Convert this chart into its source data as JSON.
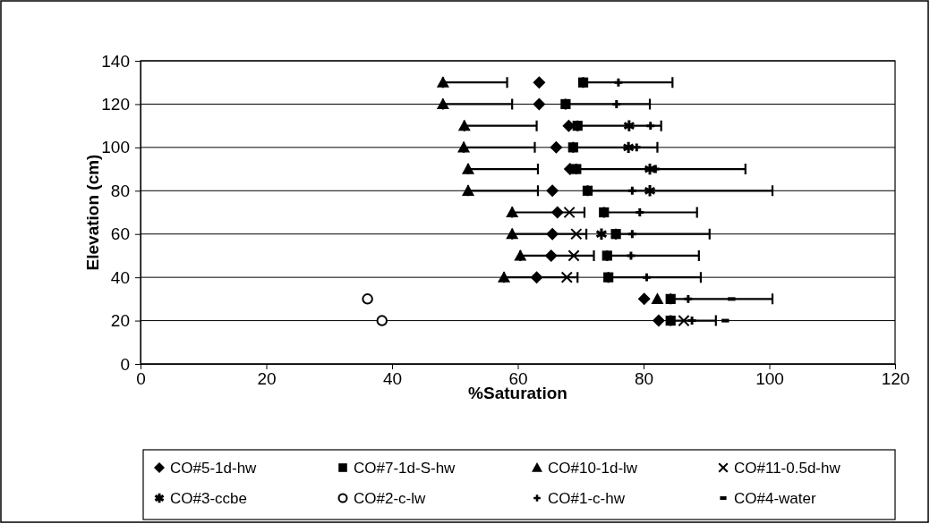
{
  "chart_data": {
    "type": "scatter",
    "xlabel": "%Saturation",
    "ylabel": "Elevation (cm)",
    "xlim": [
      0,
      120
    ],
    "xticks": [
      0,
      20,
      40,
      60,
      80,
      100,
      120
    ],
    "ylim": [
      0,
      140
    ],
    "yticks": [
      0,
      20,
      40,
      60,
      80,
      100,
      120,
      140
    ],
    "grid": "y",
    "legend": "bottom",
    "series": [
      {
        "name": "CO#5-1d-hw",
        "color": "#000000",
        "marker": "diamond",
        "x": [
          63.4,
          63.4,
          68.1,
          66.1,
          68.3,
          65.5,
          66.3,
          65.5,
          65.3,
          63.0,
          80.1,
          82.4
        ],
        "values": [
          130,
          120,
          110,
          100,
          90,
          80,
          70,
          60,
          50,
          40,
          30,
          20
        ]
      },
      {
        "name": "CO#7-1d-S-hw",
        "color": "#000000",
        "marker": "square",
        "x": [
          70.4,
          67.6,
          69.5,
          68.8,
          69.3,
          71.1,
          73.7,
          75.6,
          74.2,
          74.4,
          84.3,
          84.3
        ],
        "values": [
          130,
          120,
          110,
          100,
          90,
          80,
          70,
          60,
          50,
          40,
          30,
          20
        ],
        "xerrors": [
          [
            70.4,
            84.6
          ],
          [
            67.6,
            81.0
          ],
          [
            69.5,
            82.8
          ],
          [
            68.8,
            82.2
          ],
          [
            69.3,
            96.2
          ],
          [
            71.1,
            100.5
          ],
          [
            73.7,
            88.5
          ],
          [
            75.6,
            90.5
          ],
          [
            74.2,
            88.8
          ],
          [
            74.4,
            89.1
          ],
          [
            84.3,
            100.5
          ],
          [
            84.3,
            91.5
          ]
        ]
      },
      {
        "name": "CO#10-1d-lw",
        "color": "#000000",
        "marker": "triangle",
        "x": [
          48.1,
          48.1,
          51.5,
          51.4,
          52.1,
          52.1,
          59.1,
          59.1,
          60.4,
          57.8,
          82.2
        ],
        "values": [
          130,
          120,
          110,
          100,
          90,
          80,
          70,
          60,
          50,
          40,
          30
        ],
        "xerrors": [
          [
            48.1,
            58.3
          ],
          [
            48.1,
            59.1
          ],
          [
            51.5,
            63.0
          ],
          [
            51.4,
            62.7
          ],
          [
            52.1,
            63.2
          ],
          [
            52.1,
            63.2
          ],
          [
            59.1,
            70.6
          ],
          [
            59.1,
            70.9
          ],
          [
            60.4,
            72.1
          ],
          [
            57.8,
            69.5
          ],
          null
        ]
      },
      {
        "name": "CO#11-0.5d-hw",
        "color": "#000000",
        "marker": "cross",
        "x": [
          68.2,
          69.3,
          68.9,
          67.8,
          86.4
        ],
        "values": [
          70,
          60,
          50,
          40,
          20
        ]
      },
      {
        "name": "CO#3-ccbe",
        "color": "#000000",
        "x": [
          77.7,
          77.6,
          81.0,
          81.0,
          73.3
        ],
        "values": [
          110,
          100,
          90,
          80,
          60
        ]
      },
      {
        "name": "CO#2-c-lw",
        "color": "#000000",
        "marker": "circle",
        "x": [
          36.1,
          38.4
        ],
        "values": [
          30,
          20
        ]
      },
      {
        "name": "CO#1-c-hw",
        "color": "#000000",
        "x": [
          76.0,
          75.7,
          81.1,
          78.9,
          81.9,
          78.2,
          79.4,
          78.2,
          78.0,
          80.5,
          87.1,
          87.7
        ],
        "values": [
          130,
          120,
          110,
          100,
          90,
          80,
          70,
          60,
          50,
          40,
          30,
          20
        ]
      },
      {
        "name": "CO#4-water",
        "color": "#000000",
        "x": [
          94.0,
          93.0
        ],
        "values": [
          30,
          20
        ]
      }
    ]
  }
}
